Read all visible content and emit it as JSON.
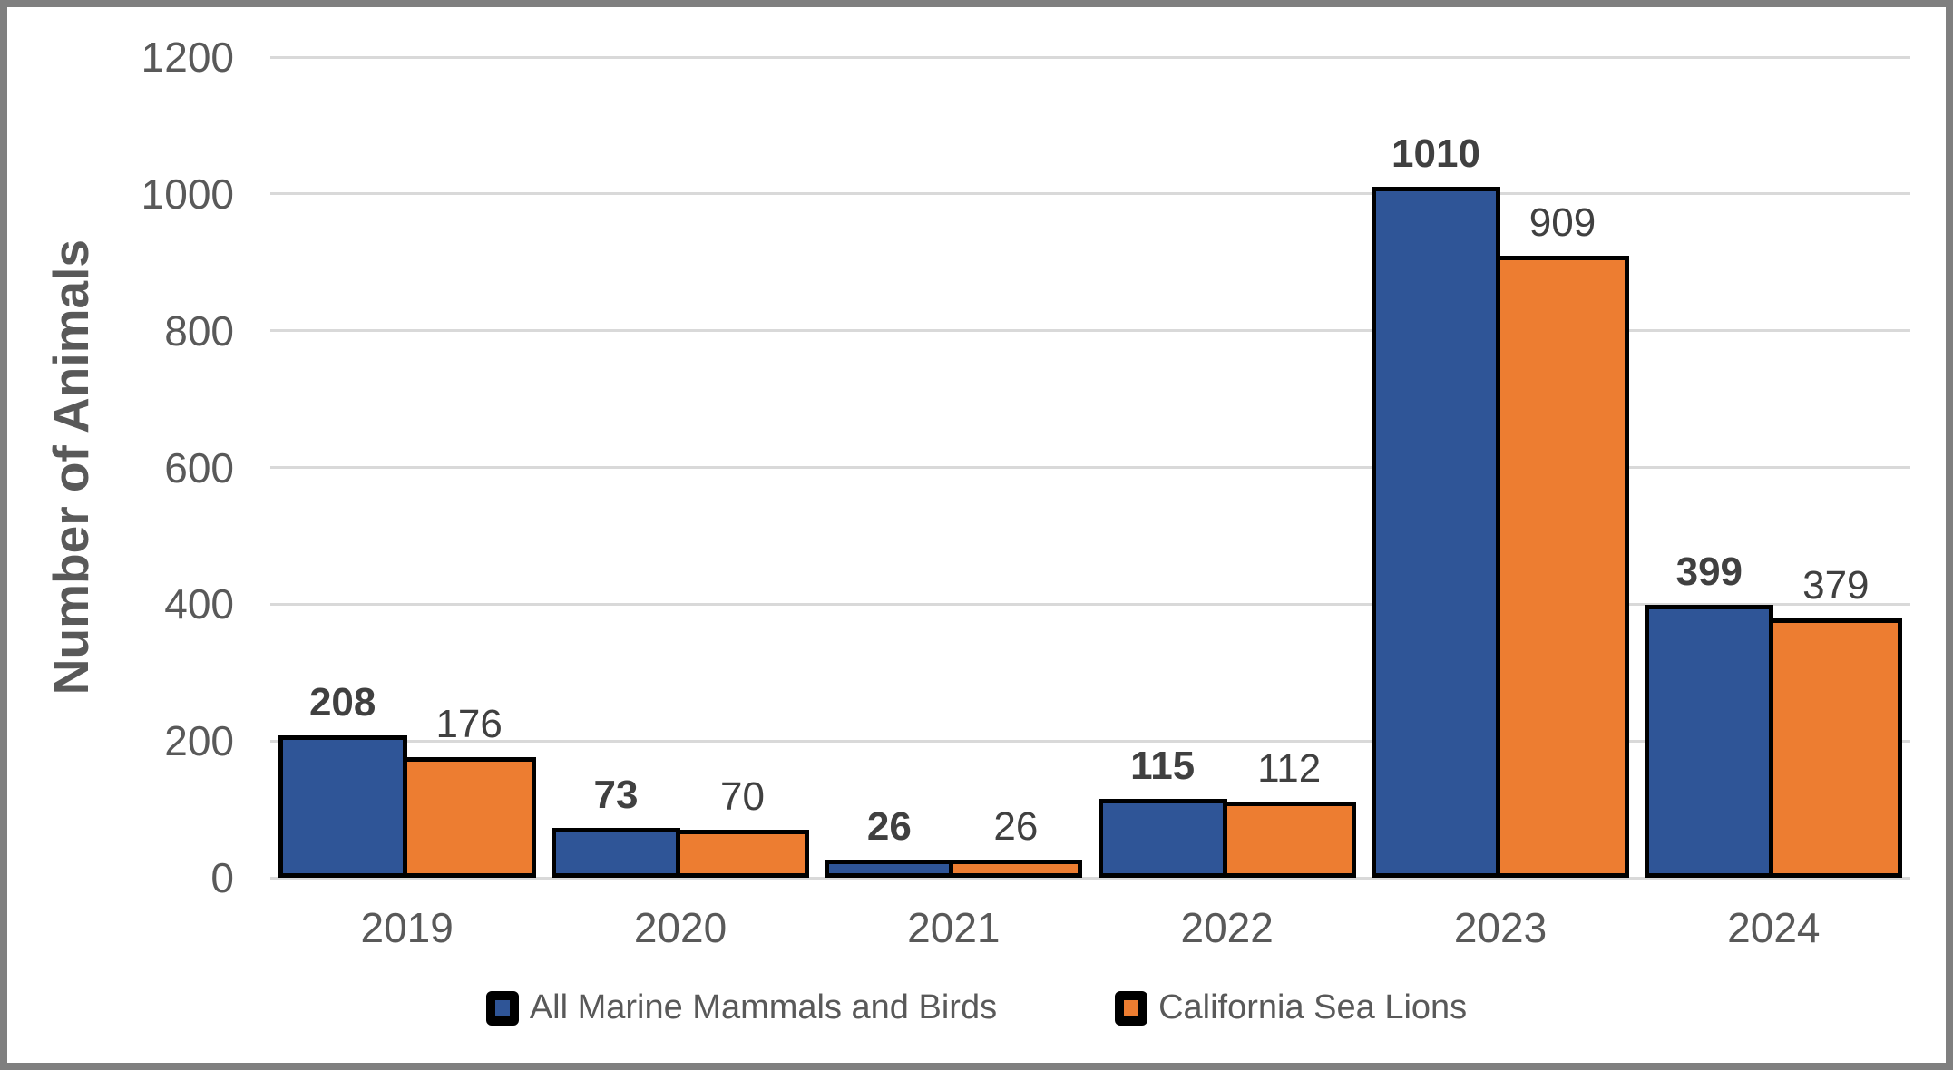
{
  "chart_data": {
    "type": "bar",
    "title": "",
    "xlabel": "",
    "ylabel": "Number of Animals",
    "categories": [
      "2019",
      "2020",
      "2021",
      "2022",
      "2023",
      "2024"
    ],
    "series": [
      {
        "name": "All Marine Mammals and Birds",
        "color": "#2F5597",
        "values": [
          208,
          73,
          26,
          115,
          1010,
          399
        ],
        "value_labels": [
          "208",
          "73",
          "26",
          "115",
          "1010",
          "399"
        ],
        "label_bold": true
      },
      {
        "name": "California Sea Lions",
        "color": "#ED7D31",
        "values": [
          176,
          70,
          26,
          112,
          909,
          379
        ],
        "value_labels": [
          "176",
          "70",
          "26",
          "112",
          "909",
          "379"
        ],
        "label_bold": false
      }
    ],
    "ylim": [
      0,
      1200
    ],
    "ytick_step": 200,
    "ytick_labels": [
      "0",
      "200",
      "400",
      "600",
      "800",
      "1000",
      "1200"
    ],
    "grid": true,
    "legend_position": "bottom",
    "colors": {
      "bar_outline": "#000000",
      "gridline": "#D9D9D9",
      "axis_text": "#595959",
      "data_label_text": "#404040",
      "frame_border": "#7F7F7F",
      "background": "#FFFFFF"
    }
  }
}
